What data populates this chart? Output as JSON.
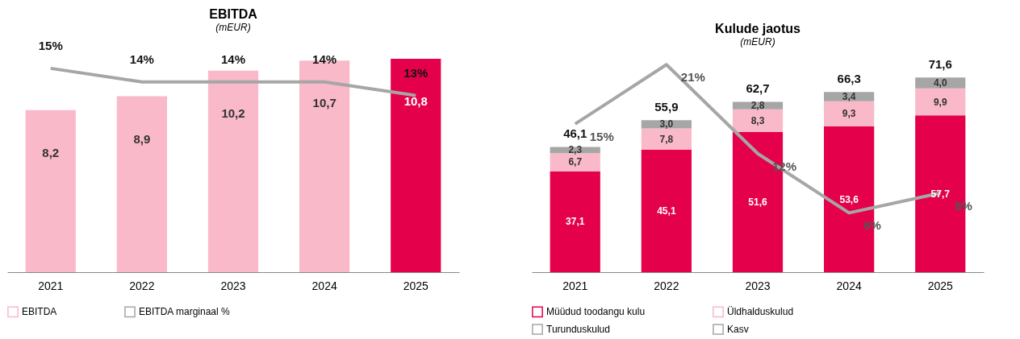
{
  "chart_data": [
    {
      "type": "bar",
      "title": "EBITDA",
      "subtitle": "(mEUR)",
      "categories": [
        "2021",
        "2022",
        "2023",
        "2024",
        "2025"
      ],
      "legend": "bottom",
      "grid": false,
      "series": [
        {
          "name": "EBITDA",
          "color": "#f9b9c9",
          "colors": [
            "#f9b9c9",
            "#f9b9c9",
            "#f9b9c9",
            "#f9b9c9",
            "#e4004b"
          ],
          "values": [
            8.2,
            8.9,
            10.2,
            10.7,
            10.8
          ],
          "value_labels": [
            "8,2",
            "8,9",
            "10,2",
            "10,7",
            "10,8"
          ]
        },
        {
          "name": "EBITDA marginaal %",
          "type": "line",
          "axis": "y2",
          "color": "#a6a6a6",
          "values": [
            15,
            14,
            14,
            14,
            13
          ],
          "value_labels": [
            "15%",
            "14%",
            "14%",
            "14%",
            "13%"
          ]
        }
      ]
    },
    {
      "type": "bar",
      "title": "Kulude jaotus",
      "subtitle": "(mEUR)",
      "categories": [
        "2021",
        "2022",
        "2023",
        "2024",
        "2025"
      ],
      "legend": "bottom",
      "grid": false,
      "stacked": true,
      "totals": [
        "46,1",
        "55,9",
        "62,7",
        "66,3",
        "71,6"
      ],
      "series": [
        {
          "name": "Müüdud toodangu kulu",
          "color": "#e4004b",
          "values": [
            37.1,
            45.1,
            51.6,
            53.6,
            57.7
          ],
          "value_labels": [
            "37,1",
            "45,1",
            "51,6",
            "53,6",
            "57,7"
          ]
        },
        {
          "name": "Üldhalduskulud",
          "color": "#f9b9c9",
          "values": [
            6.7,
            7.8,
            8.3,
            9.3,
            9.9
          ],
          "value_labels": [
            "6,7",
            "7,8",
            "8,3",
            "9,3",
            "9,9"
          ]
        },
        {
          "name": "Turunduskulud",
          "color": "#a6a6a6",
          "values": [
            2.3,
            3.0,
            2.8,
            3.4,
            4.0
          ],
          "value_labels": [
            "2,3",
            "3,0",
            "2,8",
            "3,4",
            "4,0"
          ]
        },
        {
          "name": "Kasv",
          "type": "line",
          "axis": "y2",
          "color": "#a6a6a6",
          "values": [
            15,
            21,
            12,
            6,
            8
          ],
          "value_labels": [
            "15%",
            "21%",
            "12%",
            "6%",
            "8%"
          ]
        }
      ]
    }
  ]
}
